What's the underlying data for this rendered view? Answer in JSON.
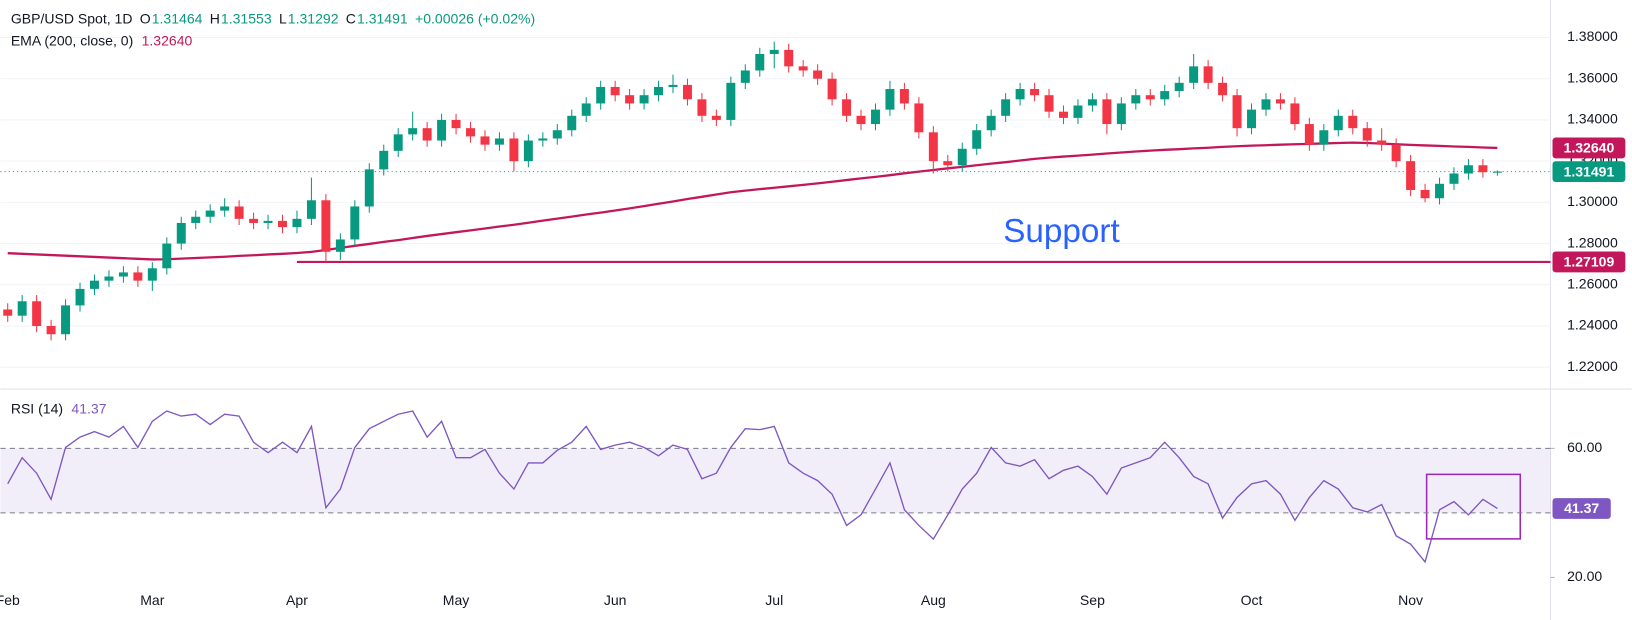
{
  "chart_data": {
    "type": "candlestick",
    "header": {
      "symbol": "GBP/USD Spot, 1D",
      "ohlc": [
        {
          "key": "O",
          "value": "1.31464"
        },
        {
          "key": "H",
          "value": "1.31553"
        },
        {
          "key": "L",
          "value": "1.31292"
        },
        {
          "key": "C",
          "value": "1.31491"
        }
      ],
      "change": "+0.00026 (+0.02%)"
    },
    "up_color": "#089981",
    "down_color": "#f23645",
    "categories": [
      "Feb",
      null,
      null,
      null,
      null,
      null,
      null,
      null,
      null,
      null,
      "Mar",
      null,
      null,
      null,
      null,
      null,
      null,
      null,
      null,
      null,
      "Apr",
      null,
      null,
      null,
      null,
      null,
      null,
      null,
      null,
      null,
      null,
      "May",
      null,
      null,
      null,
      null,
      null,
      null,
      null,
      null,
      null,
      null,
      "Jun",
      null,
      null,
      null,
      null,
      null,
      null,
      null,
      null,
      null,
      null,
      "Jul",
      null,
      null,
      null,
      null,
      null,
      null,
      null,
      null,
      null,
      null,
      "Aug",
      null,
      null,
      null,
      null,
      null,
      null,
      null,
      null,
      null,
      null,
      "Sep",
      null,
      null,
      null,
      null,
      null,
      null,
      null,
      null,
      null,
      null,
      "Oct",
      null,
      null,
      null,
      null,
      null,
      null,
      null,
      null,
      null,
      null,
      "Nov",
      null,
      null,
      null,
      null,
      null,
      null
    ],
    "ohlc": [
      [
        1.248,
        1.251,
        1.242,
        1.245
      ],
      [
        1.245,
        1.255,
        1.242,
        1.252
      ],
      [
        1.252,
        1.255,
        1.237,
        1.24
      ],
      [
        1.24,
        1.243,
        1.233,
        1.236
      ],
      [
        1.236,
        1.253,
        1.233,
        1.25
      ],
      [
        1.25,
        1.261,
        1.247,
        1.258
      ],
      [
        1.258,
        1.265,
        1.255,
        1.262
      ],
      [
        1.262,
        1.267,
        1.259,
        1.264
      ],
      [
        1.264,
        1.269,
        1.261,
        1.266
      ],
      [
        1.266,
        1.269,
        1.259,
        1.262
      ],
      [
        1.262,
        1.271,
        1.257,
        1.268
      ],
      [
        1.268,
        1.283,
        1.265,
        1.28
      ],
      [
        1.28,
        1.293,
        1.277,
        1.29
      ],
      [
        1.29,
        1.296,
        1.287,
        1.293
      ],
      [
        1.293,
        1.299,
        1.29,
        1.296
      ],
      [
        1.296,
        1.302,
        1.293,
        1.298
      ],
      [
        1.298,
        1.301,
        1.289,
        1.292
      ],
      [
        1.292,
        1.295,
        1.287,
        1.29
      ],
      [
        1.29,
        1.294,
        1.287,
        1.291
      ],
      [
        1.291,
        1.294,
        1.285,
        1.288
      ],
      [
        1.288,
        1.296,
        1.285,
        1.292
      ],
      [
        1.292,
        1.312,
        1.289,
        1.301
      ],
      [
        1.301,
        1.304,
        1.271,
        1.276
      ],
      [
        1.276,
        1.285,
        1.272,
        1.282
      ],
      [
        1.282,
        1.301,
        1.279,
        1.298
      ],
      [
        1.298,
        1.319,
        1.295,
        1.316
      ],
      [
        1.316,
        1.328,
        1.313,
        1.325
      ],
      [
        1.325,
        1.336,
        1.322,
        1.333
      ],
      [
        1.333,
        1.344,
        1.33,
        1.336
      ],
      [
        1.336,
        1.339,
        1.327,
        1.33
      ],
      [
        1.33,
        1.343,
        1.327,
        1.34
      ],
      [
        1.34,
        1.343,
        1.333,
        1.336
      ],
      [
        1.336,
        1.339,
        1.329,
        1.332
      ],
      [
        1.332,
        1.335,
        1.325,
        1.328
      ],
      [
        1.328,
        1.334,
        1.325,
        1.331
      ],
      [
        1.331,
        1.334,
        1.315,
        1.32
      ],
      [
        1.32,
        1.333,
        1.317,
        1.33
      ],
      [
        1.33,
        1.334,
        1.327,
        1.331
      ],
      [
        1.331,
        1.338,
        1.328,
        1.335
      ],
      [
        1.335,
        1.345,
        1.332,
        1.342
      ],
      [
        1.342,
        1.351,
        1.339,
        1.348
      ],
      [
        1.348,
        1.359,
        1.345,
        1.356
      ],
      [
        1.356,
        1.359,
        1.349,
        1.352
      ],
      [
        1.352,
        1.355,
        1.345,
        1.348
      ],
      [
        1.348,
        1.355,
        1.345,
        1.352
      ],
      [
        1.352,
        1.359,
        1.349,
        1.356
      ],
      [
        1.356,
        1.362,
        1.353,
        1.357
      ],
      [
        1.357,
        1.36,
        1.347,
        1.35
      ],
      [
        1.35,
        1.353,
        1.339,
        1.342
      ],
      [
        1.342,
        1.345,
        1.337,
        1.34
      ],
      [
        1.34,
        1.361,
        1.337,
        1.358
      ],
      [
        1.358,
        1.367,
        1.355,
        1.364
      ],
      [
        1.364,
        1.375,
        1.361,
        1.372
      ],
      [
        1.372,
        1.378,
        1.365,
        1.374
      ],
      [
        1.374,
        1.377,
        1.363,
        1.366
      ],
      [
        1.366,
        1.369,
        1.361,
        1.364
      ],
      [
        1.364,
        1.367,
        1.357,
        1.36
      ],
      [
        1.36,
        1.363,
        1.347,
        1.35
      ],
      [
        1.35,
        1.353,
        1.339,
        1.342
      ],
      [
        1.342,
        1.345,
        1.335,
        1.338
      ],
      [
        1.338,
        1.348,
        1.335,
        1.345
      ],
      [
        1.345,
        1.359,
        1.342,
        1.355
      ],
      [
        1.355,
        1.358,
        1.345,
        1.348
      ],
      [
        1.348,
        1.351,
        1.331,
        1.334
      ],
      [
        1.334,
        1.337,
        1.314,
        1.32
      ],
      [
        1.32,
        1.323,
        1.315,
        1.318
      ],
      [
        1.318,
        1.329,
        1.315,
        1.326
      ],
      [
        1.326,
        1.338,
        1.323,
        1.335
      ],
      [
        1.335,
        1.345,
        1.332,
        1.342
      ],
      [
        1.342,
        1.353,
        1.339,
        1.35
      ],
      [
        1.35,
        1.358,
        1.347,
        1.355
      ],
      [
        1.355,
        1.358,
        1.349,
        1.352
      ],
      [
        1.352,
        1.355,
        1.341,
        1.344
      ],
      [
        1.344,
        1.347,
        1.338,
        1.341
      ],
      [
        1.341,
        1.35,
        1.338,
        1.347
      ],
      [
        1.347,
        1.353,
        1.344,
        1.35
      ],
      [
        1.35,
        1.353,
        1.333,
        1.338
      ],
      [
        1.338,
        1.351,
        1.335,
        1.348
      ],
      [
        1.348,
        1.355,
        1.345,
        1.352
      ],
      [
        1.352,
        1.355,
        1.347,
        1.35
      ],
      [
        1.35,
        1.357,
        1.347,
        1.354
      ],
      [
        1.354,
        1.361,
        1.351,
        1.358
      ],
      [
        1.358,
        1.372,
        1.355,
        1.366
      ],
      [
        1.366,
        1.369,
        1.355,
        1.358
      ],
      [
        1.358,
        1.361,
        1.349,
        1.352
      ],
      [
        1.352,
        1.355,
        1.332,
        1.336
      ],
      [
        1.336,
        1.348,
        1.333,
        1.345
      ],
      [
        1.345,
        1.353,
        1.342,
        1.35
      ],
      [
        1.35,
        1.353,
        1.345,
        1.348
      ],
      [
        1.348,
        1.351,
        1.335,
        1.338
      ],
      [
        1.338,
        1.341,
        1.325,
        1.328
      ],
      [
        1.328,
        1.338,
        1.325,
        1.335
      ],
      [
        1.335,
        1.345,
        1.332,
        1.342
      ],
      [
        1.342,
        1.345,
        1.333,
        1.336
      ],
      [
        1.336,
        1.339,
        1.327,
        1.33
      ],
      [
        1.33,
        1.336,
        1.325,
        1.328
      ],
      [
        1.328,
        1.331,
        1.317,
        1.32
      ],
      [
        1.32,
        1.323,
        1.303,
        1.306
      ],
      [
        1.306,
        1.309,
        1.3,
        1.302
      ],
      [
        1.302,
        1.312,
        1.299,
        1.309
      ],
      [
        1.309,
        1.317,
        1.306,
        1.314
      ],
      [
        1.314,
        1.321,
        1.311,
        1.318
      ],
      [
        1.318,
        1.321,
        1.312,
        1.31464
      ],
      [
        1.31464,
        1.31553,
        1.31292,
        1.31491
      ]
    ],
    "last_close": {
      "value": 1.31491,
      "label": "1.31491"
    },
    "ylim": [
      1.2104,
      1.3982
    ],
    "yticks": [
      {
        "value": 1.22,
        "label": "1.22000"
      },
      {
        "value": 1.24,
        "label": "1.24000"
      },
      {
        "value": 1.26,
        "label": "1.26000"
      },
      {
        "value": 1.28,
        "label": "1.28000"
      },
      {
        "value": 1.3,
        "label": "1.30000"
      },
      {
        "value": 1.32,
        "label": "1.32000"
      },
      {
        "value": 1.34,
        "label": "1.34000"
      },
      {
        "value": 1.36,
        "label": "1.36000"
      },
      {
        "value": 1.38,
        "label": "1.38000"
      }
    ],
    "grid": true,
    "ema": {
      "name": "EMA (200, close, 0)",
      "color": "#c2185b",
      "value": 1.3264,
      "value_label": "1.32640",
      "values": [
        1.2753,
        1.275,
        1.2747,
        1.2744,
        1.2741,
        1.2738,
        1.2735,
        1.2732,
        1.2729,
        1.2726,
        1.2723,
        1.2724,
        1.2727,
        1.273,
        1.2733,
        1.2736,
        1.274,
        1.2743,
        1.2747,
        1.275,
        1.2754,
        1.276,
        1.2769,
        1.2779,
        1.2789,
        1.2798,
        1.2808,
        1.2817,
        1.2827,
        1.2837,
        1.2846,
        1.2855,
        1.2864,
        1.2873,
        1.2883,
        1.2891,
        1.2901,
        1.2911,
        1.2921,
        1.2931,
        1.2941,
        1.295,
        1.296,
        1.2971,
        1.2982,
        1.2993,
        1.3004,
        1.3016,
        1.3027,
        1.3038,
        1.3049,
        1.3057,
        1.3064,
        1.3071,
        1.3078,
        1.3085,
        1.3092,
        1.31,
        1.3108,
        1.3116,
        1.3124,
        1.3132,
        1.3141,
        1.3149,
        1.3157,
        1.3165,
        1.3172,
        1.318,
        1.3188,
        1.3195,
        1.3203,
        1.3211,
        1.3217,
        1.3222,
        1.3227,
        1.3232,
        1.3237,
        1.3242,
        1.3247,
        1.3251,
        1.3255,
        1.3258,
        1.3262,
        1.3265,
        1.3269,
        1.3272,
        1.3275,
        1.3277,
        1.328,
        1.3282,
        1.3284,
        1.3286,
        1.3288,
        1.329,
        1.3288,
        1.3285,
        1.3282,
        1.3279,
        1.3276,
        1.3274,
        1.3271,
        1.3269,
        1.3266,
        1.3264
      ]
    },
    "support": {
      "text": "Support",
      "value": 1.27109,
      "label": "1.27109",
      "color": "#c2185b"
    },
    "rsi": {
      "name": "RSI (14)",
      "value": 41.37,
      "color": "#7e57c2",
      "ylim": [
        16.8,
        77.1
      ],
      "yticks": [
        {
          "value": 20,
          "label": "20.00"
        },
        {
          "value": 60,
          "label": "60.00"
        }
      ],
      "band": [
        40,
        60
      ],
      "values": [
        49.0,
        57.1,
        52.3,
        44.2,
        60.3,
        63.5,
        65.2,
        63.5,
        66.8,
        60.3,
        68.4,
        71.6,
        70.0,
        70.6,
        67.4,
        70.6,
        70.0,
        61.9,
        58.7,
        61.9,
        58.7,
        66.8,
        41.6,
        47.4,
        60.3,
        66.1,
        68.4,
        70.6,
        71.6,
        63.5,
        68.4,
        57.1,
        57.1,
        59.7,
        52.3,
        47.4,
        55.5,
        55.5,
        59.4,
        61.9,
        66.8,
        59.7,
        61.0,
        61.9,
        60.3,
        57.7,
        61.0,
        59.7,
        50.6,
        52.3,
        60.3,
        66.1,
        65.8,
        66.8,
        55.5,
        52.3,
        50.0,
        45.8,
        36.1,
        39.4,
        47.4,
        55.5,
        41.0,
        36.1,
        31.9,
        39.4,
        47.4,
        52.3,
        60.3,
        55.5,
        54.5,
        56.5,
        50.6,
        53.2,
        54.5,
        51.3,
        45.8,
        53.9,
        55.5,
        57.1,
        61.9,
        57.1,
        51.3,
        49.0,
        38.4,
        44.8,
        49.0,
        50.0,
        45.8,
        37.7,
        44.8,
        50.0,
        47.4,
        41.6,
        40.3,
        42.6,
        32.9,
        30.3,
        24.8,
        41.0,
        43.5,
        39.4,
        44.2,
        41.37
      ]
    }
  }
}
